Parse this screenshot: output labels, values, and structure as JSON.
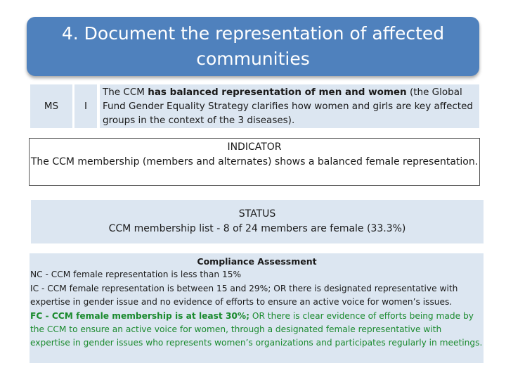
{
  "title": "4. Document the representation of affected communities",
  "row": {
    "ms": "MS",
    "i": "I",
    "desc_prefix": "The CCM ",
    "desc_bold": "has balanced representation of men and women",
    "desc_suffix": " (the Global Fund Gender Equality Strategy clarifies how women and girls are key affected groups in the context of the 3 diseases)."
  },
  "indicator": {
    "heading": "INDICATOR",
    "text": "The CCM membership (members and alternates) shows a balanced female representation."
  },
  "status": {
    "heading": "STATUS",
    "text": "CCM membership list - 8 of 24 members are female (33.3%)"
  },
  "compliance": {
    "heading": "Compliance Assessment",
    "nc": "NC - CCM female representation is less than 15%",
    "ic": "IC - CCM female representation is between 15 and 29%; OR there is designated representative with expertise in gender issue and no evidence of efforts to ensure an active voice for women’s issues.",
    "fc_bold": "FC - CCM female membership is at least 30%;",
    "fc_rest": " OR there is clear evidence of efforts being made by the CCM to ensure an active voice for women, through a designated female representative with expertise in gender issues who represents women’s organizations and participates regularly in meetings.",
    "colors": {
      "fc": "#1a8a2e",
      "cell_bg": "#dce6f1",
      "title_bg": "#4f81bd"
    }
  }
}
